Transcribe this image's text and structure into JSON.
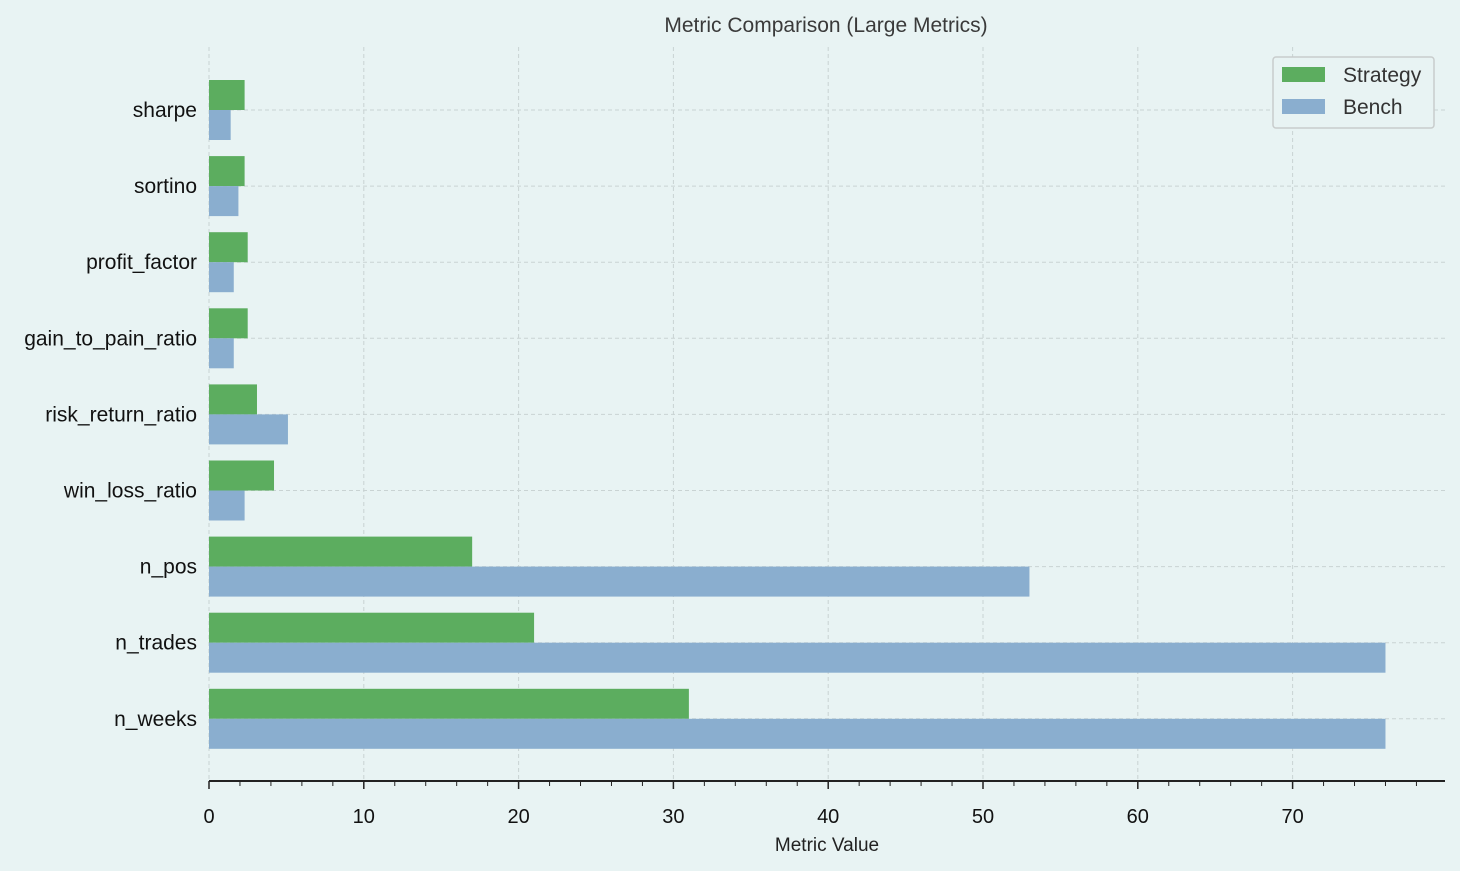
{
  "chart_data": {
    "type": "bar",
    "orientation": "horizontal",
    "title": "Metric Comparison (Large Metrics)",
    "xlabel": "Metric Value",
    "ylabel": "",
    "xlim": [
      0,
      80
    ],
    "x_ticks": [
      0,
      10,
      20,
      30,
      40,
      50,
      60,
      70
    ],
    "grid": true,
    "legend_position": "top-right",
    "categories": [
      "sharpe",
      "sortino",
      "profit_factor",
      "gain_to_pain_ratio",
      "risk_return_ratio",
      "win_loss_ratio",
      "n_pos",
      "n_trades",
      "n_weeks"
    ],
    "series": [
      {
        "name": "Strategy",
        "color": "#5cad5f",
        "values": [
          2.3,
          2.3,
          2.5,
          2.5,
          3.1,
          4.2,
          17,
          21,
          31
        ]
      },
      {
        "name": "Bench",
        "color": "#8aaecf",
        "values": [
          1.4,
          1.9,
          1.6,
          1.6,
          5.1,
          2.3,
          53,
          76,
          76
        ]
      }
    ]
  }
}
